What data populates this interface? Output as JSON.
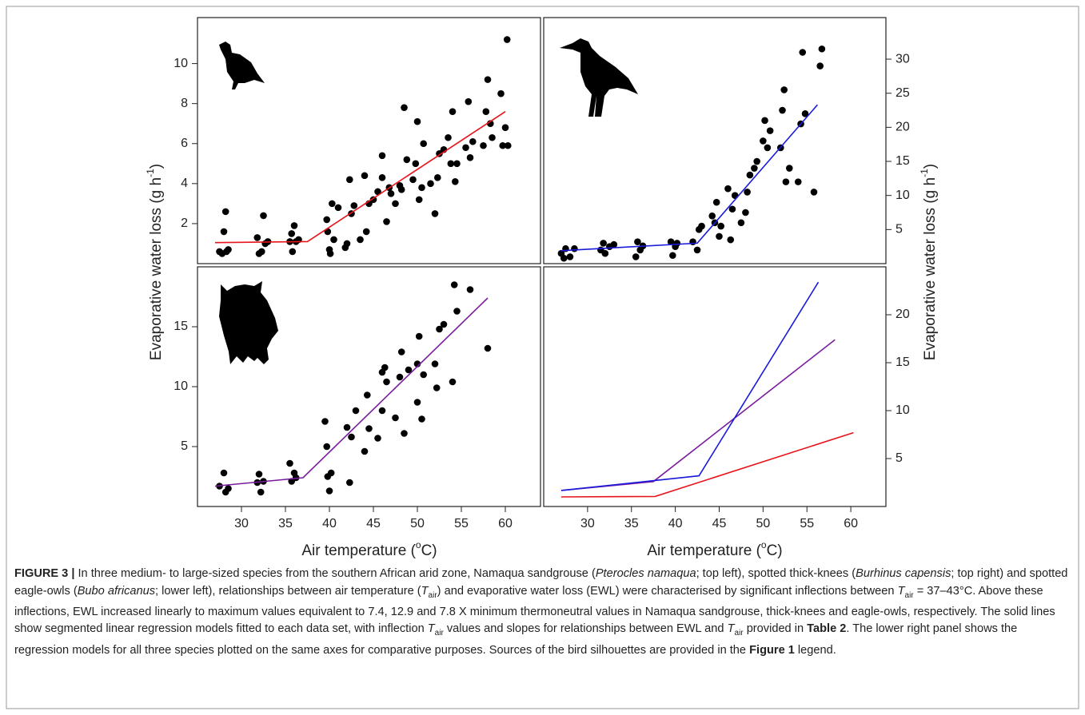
{
  "figure": {
    "x_label": [
      "Air temperature (",
      "o",
      "C)"
    ],
    "y_label": [
      "Evaporative water loss (g h",
      "-1",
      ")"
    ]
  },
  "chart_data": [
    {
      "type": "scatter",
      "xlim": [
        25,
        64
      ],
      "ylim": [
        0,
        12.3
      ],
      "yticks": [
        2,
        4,
        6,
        8,
        10
      ],
      "series": [
        {
          "mode": "markers",
          "color": "#000000",
          "x": [
            27.5,
            27.8,
            28,
            28.2,
            28.3,
            28.5,
            31.8,
            32,
            32.3,
            32.5,
            32.7,
            33,
            35.5,
            35.7,
            35.8,
            36,
            36.2,
            36.5,
            39.7,
            39.8,
            40,
            40.1,
            40.3,
            40.5,
            41,
            41.8,
            42,
            42.3,
            42.5,
            42.8,
            43.5,
            44,
            44.2,
            44.5,
            45,
            45.5,
            46,
            46,
            46.5,
            46.8,
            47,
            47.5,
            48,
            48.2,
            48.5,
            48.8,
            49.5,
            49.8,
            50,
            50.2,
            50.5,
            50.7,
            51.5,
            52,
            52.3,
            52.5,
            53,
            53.5,
            53.8,
            54,
            54.3,
            54.5,
            55.5,
            55.8,
            56,
            56.3,
            57.5,
            57.8,
            58,
            58.3,
            58.5,
            59.5,
            59.7,
            60,
            60.2,
            60.3
          ],
          "values": [
            0.6,
            0.5,
            1.6,
            2.6,
            0.6,
            0.7,
            1.3,
            0.5,
            0.6,
            2.4,
            1.0,
            1.1,
            1.1,
            1.5,
            0.6,
            1.9,
            1.1,
            1.2,
            2.2,
            1.6,
            0.7,
            0.5,
            3.0,
            1.2,
            2.8,
            0.8,
            1.0,
            4.2,
            2.5,
            2.9,
            1.2,
            4.4,
            1.6,
            3.0,
            3.2,
            3.6,
            4.3,
            5.4,
            2.1,
            3.8,
            3.5,
            3.0,
            3.9,
            3.7,
            7.8,
            5.2,
            4.2,
            5.0,
            7.1,
            3.2,
            3.8,
            6.0,
            4.0,
            2.5,
            4.3,
            5.5,
            5.7,
            6.3,
            5.0,
            7.6,
            4.1,
            5.0,
            5.8,
            8.1,
            5.3,
            6.1,
            5.9,
            7.6,
            9.2,
            7.0,
            6.3,
            8.5,
            5.9,
            6.8,
            11.2,
            5.9
          ]
        },
        {
          "mode": "lines",
          "color": "#e8141b",
          "x": [
            27,
            37.5,
            60
          ],
          "values": [
            1.05,
            1.1,
            7.6
          ]
        }
      ]
    },
    {
      "type": "scatter",
      "xlim": [
        25,
        64
      ],
      "ylim": [
        0,
        36.1
      ],
      "yticks": [
        5,
        10,
        15,
        20,
        25,
        30
      ],
      "series": [
        {
          "mode": "markers",
          "color": "#000000",
          "x": [
            27,
            27.3,
            27.5,
            28,
            28.5,
            31.5,
            31.8,
            32,
            32.5,
            33,
            35.5,
            35.7,
            36,
            36.3,
            39.5,
            39.7,
            40,
            40.2,
            42,
            42.5,
            42.7,
            43,
            44.2,
            44.5,
            44.7,
            45,
            45.2,
            46,
            46.3,
            46.5,
            46.8,
            47.5,
            48,
            48.2,
            48.5,
            49,
            49.3,
            50,
            50.2,
            50.5,
            50.8,
            52,
            52.2,
            52.4,
            52.6,
            53,
            54,
            54.3,
            54.5,
            54.8,
            55.8,
            56.5,
            56.7
          ],
          "values": [
            1.5,
            0.8,
            2.2,
            1.0,
            2.2,
            2.0,
            3.0,
            1.5,
            2.5,
            2.8,
            1.0,
            3.2,
            2.0,
            2.6,
            3.2,
            1.2,
            2.5,
            3.0,
            3.2,
            2.0,
            5.0,
            5.5,
            7.0,
            6.0,
            9.0,
            4.0,
            5.5,
            11.0,
            3.5,
            8.0,
            10.0,
            6.0,
            7.5,
            10.5,
            13.0,
            14.0,
            15.0,
            18.0,
            21.0,
            17.0,
            19.5,
            17.0,
            22.5,
            25.5,
            12.0,
            14.0,
            12.0,
            20.5,
            31.0,
            22.0,
            10.5,
            29.0,
            31.5
          ]
        },
        {
          "mode": "lines",
          "color": "#1a1adc",
          "x": [
            27,
            42.5,
            56.2
          ],
          "values": [
            1.9,
            3.0,
            23.3
          ]
        }
      ]
    },
    {
      "type": "scatter",
      "xlim": [
        25,
        64
      ],
      "ylim": [
        0,
        20
      ],
      "yticks": [
        5,
        10,
        15
      ],
      "xticks": [
        30,
        35,
        40,
        45,
        50,
        55,
        60
      ],
      "series": [
        {
          "mode": "markers",
          "color": "#000000",
          "x": [
            27.5,
            28,
            28.2,
            28.5,
            31.8,
            32,
            32.2,
            32.5,
            35.5,
            35.7,
            36,
            36.2,
            39.5,
            39.7,
            39.8,
            40,
            40.2,
            42,
            42.3,
            42.5,
            43,
            44,
            44.3,
            44.5,
            45.5,
            46,
            46,
            46.3,
            46.5,
            47.5,
            48,
            48.2,
            48.5,
            49,
            50,
            50,
            50.2,
            50.5,
            50.7,
            52,
            52.2,
            52.5,
            53,
            54,
            54.2,
            54.5,
            56,
            58
          ],
          "values": [
            1.7,
            2.8,
            1.2,
            1.5,
            2.0,
            2.7,
            1.2,
            2.1,
            3.6,
            2.1,
            2.8,
            2.4,
            7.1,
            5.0,
            2.5,
            1.3,
            2.8,
            6.6,
            2.0,
            5.8,
            8.0,
            4.6,
            9.3,
            6.5,
            5.7,
            8.0,
            11.2,
            11.6,
            10.4,
            7.4,
            10.8,
            12.9,
            6.1,
            11.4,
            11.9,
            8.7,
            14.2,
            7.3,
            11.0,
            11.9,
            9.9,
            14.8,
            15.2,
            10.4,
            18.5,
            16.3,
            18.1,
            13.2
          ]
        },
        {
          "mode": "lines",
          "color": "#7a1c9e",
          "x": [
            27,
            37,
            58
          ],
          "values": [
            1.7,
            2.4,
            17.4
          ]
        }
      ]
    },
    {
      "type": "scatter",
      "xlim": [
        25,
        64
      ],
      "ylim": [
        0,
        25
      ],
      "yticks": [
        5,
        10,
        15,
        20
      ],
      "xticks": [
        30,
        35,
        40,
        45,
        50,
        55,
        60
      ],
      "series": [
        {
          "mode": "lines",
          "color": "#e8141b",
          "x": [
            27,
            37.7,
            60.3
          ],
          "values": [
            1.0,
            1.05,
            7.7
          ]
        },
        {
          "mode": "lines",
          "color": "#7a1c9e",
          "x": [
            27,
            37.5,
            58.2
          ],
          "values": [
            1.67,
            2.6,
            17.4
          ]
        },
        {
          "mode": "lines",
          "color": "#1a1adc",
          "x": [
            27,
            42.7,
            56.3
          ],
          "values": [
            1.67,
            3.2,
            23.4
          ]
        }
      ]
    }
  ],
  "caption": [
    {
      "text": "FIGURE 3 |",
      "style": "b"
    },
    {
      "text": " In three medium- to large-sized species from the southern African arid zone, Namaqua sandgrouse (",
      "style": "n"
    },
    {
      "text": "Pterocles namaqua",
      "style": "i"
    },
    {
      "text": "; top left), spotted thick-knees (",
      "style": "n"
    },
    {
      "text": "Burhinus capensis",
      "style": "i"
    },
    {
      "text": "; top right) and spotted eagle-owls (",
      "style": "n"
    },
    {
      "text": "Bubo africanus",
      "style": "i"
    },
    {
      "text": "; lower left), relationships between air temperature (",
      "style": "n"
    },
    {
      "text": "T",
      "style": "i"
    },
    {
      "text": "air",
      "style": "sub"
    },
    {
      "text": ") and evaporative water loss (EWL) were characterised by significant inflections between ",
      "style": "n"
    },
    {
      "text": "T",
      "style": "i"
    },
    {
      "text": "air",
      "style": "sub"
    },
    {
      "text": " = 37–43°C. Above these inflections, EWL increased linearly to maximum values equivalent to 7.4, 12.9 and 7.8 X minimum thermoneutral values in Namaqua sandgrouse, thick-knees and eagle-owls, respectively. The solid lines show segmented linear regression models fitted to each data set, with inflection ",
      "style": "n"
    },
    {
      "text": "T",
      "style": "i"
    },
    {
      "text": "air",
      "style": "sub"
    },
    {
      "text": " values and slopes for relationships between EWL and ",
      "style": "n"
    },
    {
      "text": "T",
      "style": "i"
    },
    {
      "text": "air",
      "style": "sub"
    },
    {
      "text": " provided in ",
      "style": "n"
    },
    {
      "text": "Table 2",
      "style": "b"
    },
    {
      "text": ". The lower right panel shows the regression models for all three species plotted on the same axes for comparative purposes. Sources of the bird silhouettes are provided in the ",
      "style": "n"
    },
    {
      "text": "Figure 1",
      "style": "b"
    },
    {
      "text": " legend.",
      "style": "n"
    }
  ]
}
